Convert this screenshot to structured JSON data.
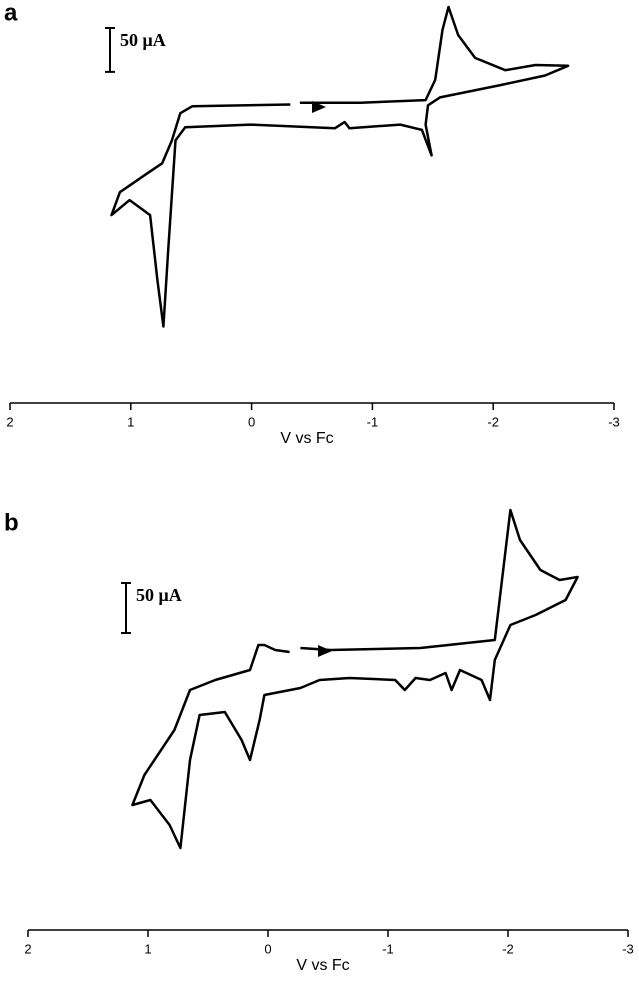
{
  "chart_data": [
    {
      "type": "line",
      "panel_label": "a",
      "xlabel": "V vs Fc",
      "color": "#000000",
      "xlim": [
        2,
        -3
      ],
      "xticks": [
        2,
        1,
        0,
        -1,
        -2,
        -3
      ],
      "ylim": [
        -250,
        200
      ],
      "scale_bar": {
        "value": 50,
        "label": "50 μA"
      },
      "x": [
        -0.4,
        -0.9,
        -1.44,
        -1.52,
        -1.58,
        -1.63,
        -1.71,
        -1.85,
        -2.1,
        -2.35,
        -2.62,
        -2.43,
        -2.06,
        -1.56,
        -1.46,
        -1.44,
        -1.49,
        -1.41,
        -1.23,
        -0.81,
        -0.77,
        -0.69,
        0.01,
        0.55,
        0.63,
        0.69,
        0.73,
        0.78,
        0.84,
        1.01,
        1.16,
        1.09,
        0.88,
        0.74,
        0.66,
        0.59,
        0.49,
        -0.32
      ],
      "values": [
        83,
        83,
        86,
        109,
        166,
        192,
        160,
        134,
        120,
        126,
        125,
        114,
        103,
        89,
        80,
        58,
        23,
        52,
        58,
        54,
        61,
        54,
        58,
        55,
        40,
        -85,
        -172,
        -119,
        -45,
        -28,
        -45,
        -19,
        1,
        14,
        40,
        71,
        79,
        81
      ]
    },
    {
      "type": "line",
      "panel_label": "b",
      "xlabel": "V vs Fc",
      "color": "#000000",
      "xlim": [
        2,
        -3
      ],
      "xticks": [
        2,
        1,
        0,
        -1,
        -2,
        -3
      ],
      "ylim": [
        -250,
        175
      ],
      "scale_bar": {
        "value": 50,
        "label": "50 μA"
      },
      "x": [
        -0.27,
        -0.52,
        -1.27,
        -1.89,
        -1.93,
        -2.02,
        -2.1,
        -2.27,
        -2.43,
        -2.58,
        -2.48,
        -2.23,
        -2.02,
        -1.89,
        -1.85,
        -1.78,
        -1.6,
        -1.53,
        -1.48,
        -1.35,
        -1.23,
        -1.14,
        -1.06,
        -0.68,
        -0.43,
        -0.27,
        0.03,
        0.07,
        0.15,
        0.22,
        0.36,
        0.57,
        0.65,
        0.73,
        0.82,
        0.98,
        1.13,
        1.03,
        0.78,
        0.65,
        0.44,
        0.15,
        0.08,
        0.03,
        -0.06,
        -0.18
      ],
      "values": [
        27,
        25,
        27,
        35,
        75,
        165,
        135,
        105,
        95,
        98,
        75,
        60,
        50,
        15,
        -25,
        -5,
        5,
        -15,
        2,
        -5,
        -3,
        -15,
        -5,
        -3,
        -5,
        -13,
        -20,
        -45,
        -85,
        -65,
        -37,
        -40,
        -85,
        -173,
        -150,
        -125,
        -130,
        -100,
        -55,
        -15,
        -5,
        5,
        30,
        30,
        25,
        23
      ]
    }
  ]
}
